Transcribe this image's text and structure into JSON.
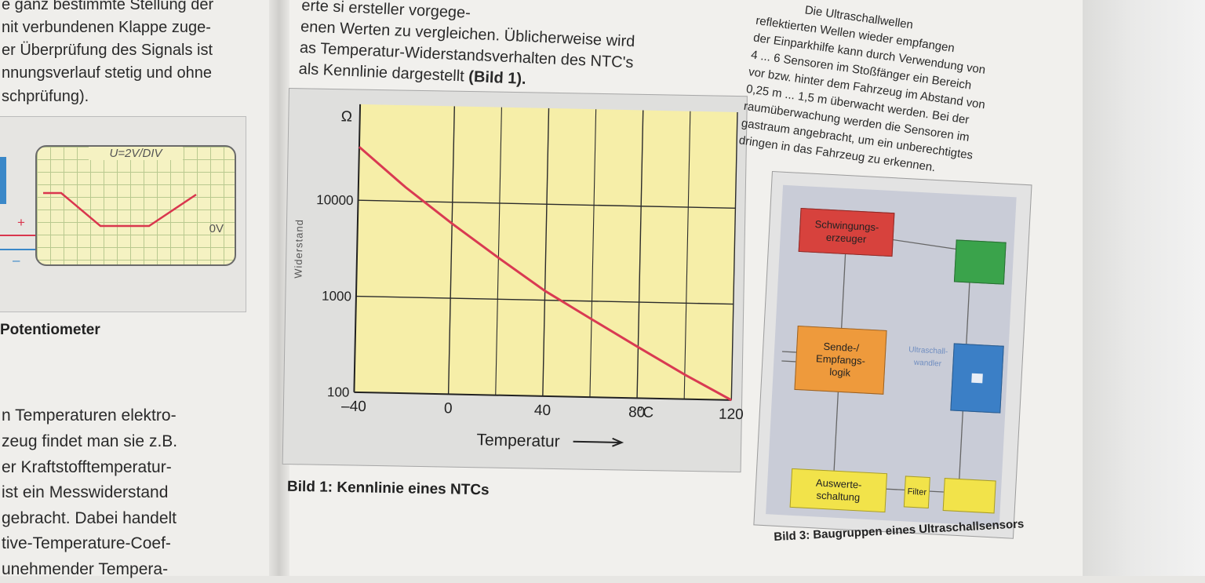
{
  "left_page": {
    "top_lines": [
      "e ganz bestimmte Stellung der",
      "nit verbundenen Klappe zuge-",
      "er Überprüfung des Signals ist",
      "nnungsverlauf stetig und ohne",
      "schprüfung)."
    ],
    "oscilloscope": {
      "scale_label": "U=2V/DIV",
      "zero_label": "0V",
      "plus": "+",
      "minus": "–"
    },
    "caption": "Potentiometer",
    "body_lines": [
      "n Temperaturen elektro-",
      "zeug findet man sie z.B.",
      "er Kraftstofftemperatur-",
      "ist ein Messwiderstand",
      "gebracht. Dabei handelt",
      "tive-Temperature-Coef-",
      "unehmender Tempera-"
    ]
  },
  "center_text": {
    "lines": [
      "erte si            ersteller vorgege-",
      "enen Werten zu vergleichen. Üblicherweise wird",
      "as Temperatur-Widerstandsverhalten des NTC's",
      "als Kennlinie dargestellt "
    ],
    "bold_ref": "(Bild 1)."
  },
  "chart_data": {
    "type": "line",
    "title": "",
    "ylabel": "Widerstand",
    "xlabel": "Temperatur",
    "x_unit": "°C",
    "y_unit": "Ω",
    "y_scale": "log",
    "xlim": [
      -40,
      120
    ],
    "ylim": [
      100,
      100000
    ],
    "x_ticks": [
      -40,
      0,
      40,
      80,
      120
    ],
    "x_tick_labels": [
      "–40",
      "0",
      "40",
      "80",
      "120"
    ],
    "y_ticks": [
      100,
      1000,
      10000
    ],
    "y_tick_labels": [
      "100",
      "1000",
      "10000"
    ],
    "grid": true,
    "series": [
      {
        "x": [
          -40,
          -20,
          0,
          20,
          40,
          60,
          80,
          100,
          120
        ],
        "y": [
          36000,
          14000,
          6000,
          2700,
          1250,
          650,
          340,
          180,
          100
        ]
      }
    ],
    "colors": {
      "background": "#f6eea8",
      "line": "#d93a52",
      "grid": "#2b2b2b"
    }
  },
  "fig1_caption": "Bild 1: Kennlinie eines NTCs",
  "right_text": {
    "lines": [
      "Die Ultraschallwellen",
      "reflektierten Wellen wieder empfangen",
      "der Einparkhilfe kann durch Verwendung von",
      "4 ... 6 Sensoren im Stoßfänger ein Bereich",
      "vor bzw. hinter dem Fahrzeug im Abstand von",
      "0,25 m ... 1,5 m überwacht werden. Bei der",
      "raumüberwachung werden die Sensoren im",
      "gastraum angebracht, um ein unberechtigtes",
      "dringen in das Fahrzeug zu erkennen."
    ]
  },
  "fig3": {
    "blocks": {
      "oscillator": "Schwingungs-\nerzeuger",
      "logic": "Sende-/\nEmpfangs-\nlogik",
      "evaluation": "Auswerte-\nschaltung",
      "filter": "Filter",
      "transducer": "Ultraschall-\nwandler"
    },
    "caption": "Bild 3: Baugruppen eines Ultraschallsensors"
  }
}
